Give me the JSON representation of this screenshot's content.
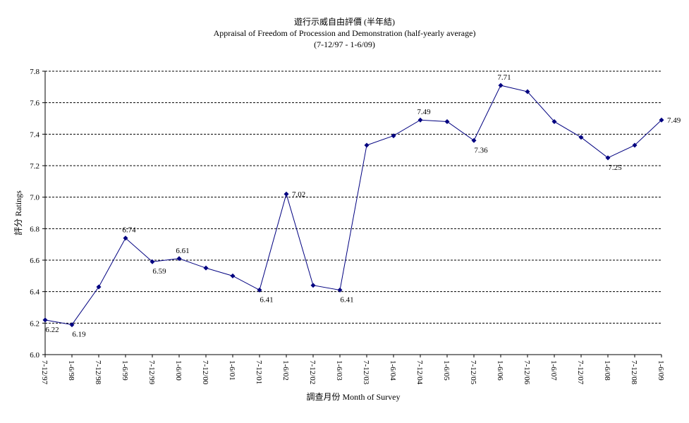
{
  "chart_data": {
    "type": "line",
    "title_zh": "遊行示威自由評價 (半年結)",
    "title": "Appraisal of Freedom of Procession and Demonstration (half-yearly average)",
    "subtitle": "(7-12/97 - 1-6/09)",
    "xlabel": "調查月份 Month of Survey",
    "ylabel": "評分 Ratings",
    "ylim": [
      6.0,
      7.8
    ],
    "yticks": [
      "6.0",
      "6.2",
      "6.4",
      "6.6",
      "6.8",
      "7.0",
      "7.2",
      "7.4",
      "7.6",
      "7.8"
    ],
    "grid": true,
    "line_color": "#000080",
    "categories": [
      "7-12/97",
      "1-6/98",
      "7-12/98",
      "1-6/99",
      "7-12/99",
      "1-6/00",
      "7-12/00",
      "1-6/01",
      "7-12/01",
      "1-6/02",
      "7-12/02",
      "1-6/03",
      "7-12/03",
      "1-6/04",
      "7-12/04",
      "1-6/05",
      "7-12/05",
      "1-6/06",
      "7-12/06",
      "1-6/07",
      "7-12/07",
      "1-6/08",
      "7-12/08",
      "1-6/09"
    ],
    "values": [
      6.22,
      6.19,
      6.43,
      6.74,
      6.59,
      6.61,
      6.55,
      6.5,
      6.41,
      7.02,
      6.44,
      6.41,
      7.33,
      7.39,
      7.49,
      7.48,
      7.36,
      7.71,
      7.67,
      7.48,
      7.38,
      7.25,
      7.33,
      7.49
    ],
    "labels": [
      {
        "index": 0,
        "text": "6.22",
        "pos": "below"
      },
      {
        "index": 1,
        "text": "6.19",
        "pos": "below"
      },
      {
        "index": 3,
        "text": "6.74",
        "pos": "above"
      },
      {
        "index": 4,
        "text": "6.59",
        "pos": "below"
      },
      {
        "index": 5,
        "text": "6.61",
        "pos": "above"
      },
      {
        "index": 8,
        "text": "6.41",
        "pos": "below"
      },
      {
        "index": 9,
        "text": "7.02",
        "pos": "right"
      },
      {
        "index": 11,
        "text": "6.41",
        "pos": "below"
      },
      {
        "index": 14,
        "text": "7.49",
        "pos": "above"
      },
      {
        "index": 16,
        "text": "7.36",
        "pos": "below"
      },
      {
        "index": 17,
        "text": "7.71",
        "pos": "above"
      },
      {
        "index": 21,
        "text": "7.25",
        "pos": "below"
      },
      {
        "index": 23,
        "text": "7.49",
        "pos": "right"
      }
    ]
  }
}
